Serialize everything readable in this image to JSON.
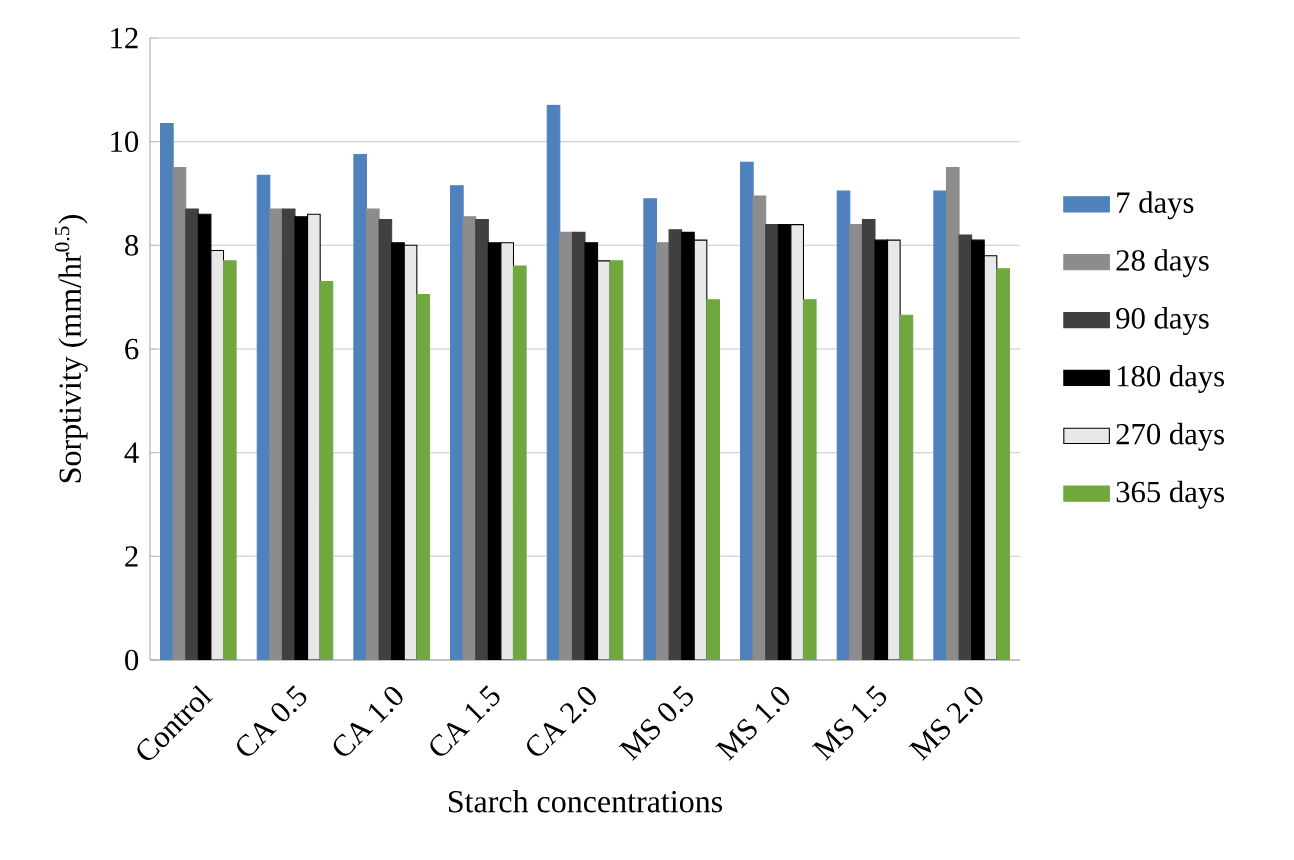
{
  "chart_data": {
    "type": "bar",
    "xlabel": "Starch concentrations",
    "ylabel": "Sorptivity (mm/hr$^{0.5}$)",
    "categories": [
      "Control",
      "CA 0.5",
      "CA 1.0",
      "CA 1.5",
      "CA 2.0",
      "MS 0.5",
      "MS 1.0",
      "MS 1.5",
      "MS 2.0"
    ],
    "series": [
      {
        "name": "7 days",
        "color": "#4f81bd",
        "values": [
          10.35,
          9.35,
          9.75,
          9.15,
          10.7,
          8.9,
          9.6,
          9.05,
          9.05
        ]
      },
      {
        "name": "28 days",
        "color": "#8c8c8c",
        "values": [
          9.5,
          8.7,
          8.7,
          8.55,
          8.25,
          8.05,
          8.95,
          8.4,
          9.5
        ]
      },
      {
        "name": "90 days",
        "color": "#404040",
        "values": [
          8.7,
          8.7,
          8.5,
          8.5,
          8.25,
          8.3,
          8.4,
          8.5,
          8.2
        ]
      },
      {
        "name": "180 days",
        "color": "#000000",
        "values": [
          8.6,
          8.55,
          8.05,
          8.05,
          8.05,
          8.25,
          8.4,
          8.1,
          8.1
        ]
      },
      {
        "name": "270 days",
        "color": "#e8e8e8",
        "values": [
          7.9,
          8.6,
          8.0,
          8.05,
          7.7,
          8.1,
          8.4,
          8.1,
          7.8
        ]
      },
      {
        "name": "365 days",
        "color": "#70a83f",
        "values": [
          7.7,
          7.3,
          7.05,
          7.6,
          7.7,
          6.95,
          6.95,
          6.65,
          7.55
        ]
      }
    ],
    "ylim": [
      0,
      12
    ],
    "yticks": [
      0,
      2,
      4,
      6,
      8,
      10,
      12
    ],
    "grid": "y",
    "legend": "right"
  }
}
